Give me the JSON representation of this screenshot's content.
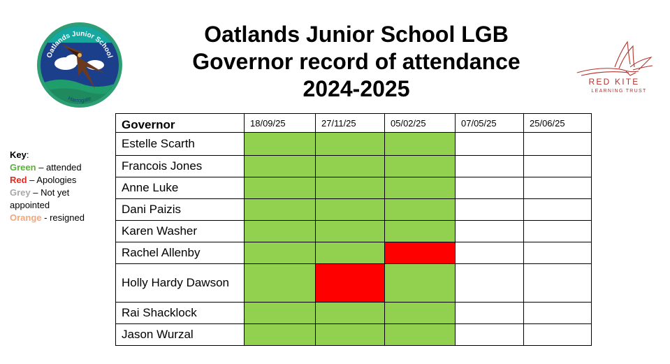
{
  "title": {
    "line1": "Oatlands Junior School LGB",
    "line2": "Governor record of attendance",
    "line3": "2024-2025"
  },
  "school_logo": {
    "top_text": "Oatlands Junior School",
    "bottom_text": "Harrogate"
  },
  "trust_logo": {
    "name": "RED KITE",
    "subtitle": "LEARNING TRUST"
  },
  "key": {
    "title": "Key",
    "items": [
      {
        "word": "Green",
        "rest": " – attended"
      },
      {
        "word": "Red",
        "rest": " – Apologies"
      },
      {
        "word": "Grey",
        "rest": " – Not yet appointed"
      },
      {
        "word": "Orange",
        "rest": " - resigned"
      }
    ]
  },
  "colors": {
    "attended": "#92d050",
    "apologies": "#ff0000",
    "not_yet": "#ffffff"
  },
  "table": {
    "header": "Governor",
    "dates": [
      "18/09/25",
      "27/11/25",
      "05/02/25",
      "07/05/25",
      "25/06/25"
    ],
    "rows": [
      {
        "name": "Estelle Scarth",
        "status": [
          "green",
          "green",
          "green",
          "blank",
          "blank"
        ]
      },
      {
        "name": "Francois Jones",
        "status": [
          "green",
          "green",
          "green",
          "blank",
          "blank"
        ]
      },
      {
        "name": "Anne Luke",
        "status": [
          "green",
          "green",
          "green",
          "blank",
          "blank"
        ]
      },
      {
        "name": "Dani Paizis",
        "status": [
          "green",
          "green",
          "green",
          "blank",
          "blank"
        ]
      },
      {
        "name": "Karen Washer",
        "status": [
          "green",
          "green",
          "green",
          "blank",
          "blank"
        ]
      },
      {
        "name": "Rachel Allenby",
        "status": [
          "green",
          "green",
          "red",
          "blank",
          "blank"
        ]
      },
      {
        "name": "Holly Hardy Dawson",
        "status": [
          "green",
          "red",
          "green",
          "blank",
          "blank"
        ]
      },
      {
        "name": "Rai Shacklock",
        "status": [
          "green",
          "green",
          "green",
          "blank",
          "blank"
        ]
      },
      {
        "name": "Jason Wurzal",
        "status": [
          "green",
          "green",
          "green",
          "blank",
          "blank"
        ]
      }
    ]
  }
}
